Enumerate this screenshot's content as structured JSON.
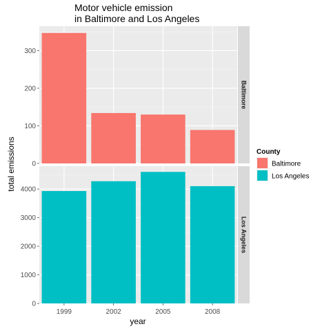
{
  "chart_data": {
    "type": "bar",
    "title": [
      "Motor vehicle emission",
      "in Baltimore and Los Angeles"
    ],
    "xlabel": "year",
    "ylabel": "total emissions",
    "categories": [
      "1999",
      "2002",
      "2005",
      "2008"
    ],
    "facets": [
      {
        "name": "Baltimore",
        "ylim": [
          0,
          365
        ],
        "yticks": [
          0,
          100,
          200,
          300
        ],
        "series": [
          {
            "name": "Baltimore",
            "color": "#F8766D",
            "values": [
              347,
              134,
              130,
              89
            ]
          }
        ]
      },
      {
        "name": "Los Angeles",
        "ylim": [
          0,
          4800
        ],
        "yticks": [
          0,
          1000,
          2000,
          3000,
          4000
        ],
        "series": [
          {
            "name": "Los Angeles",
            "color": "#00BFC4",
            "values": [
              3931,
              4274,
              4601,
              4101
            ]
          }
        ]
      }
    ],
    "legend": {
      "title": "County",
      "position": "right",
      "entries": [
        {
          "label": "Baltimore",
          "color": "#F8766D"
        },
        {
          "label": "Los Angeles",
          "color": "#00BFC4"
        }
      ]
    },
    "grid": true
  }
}
